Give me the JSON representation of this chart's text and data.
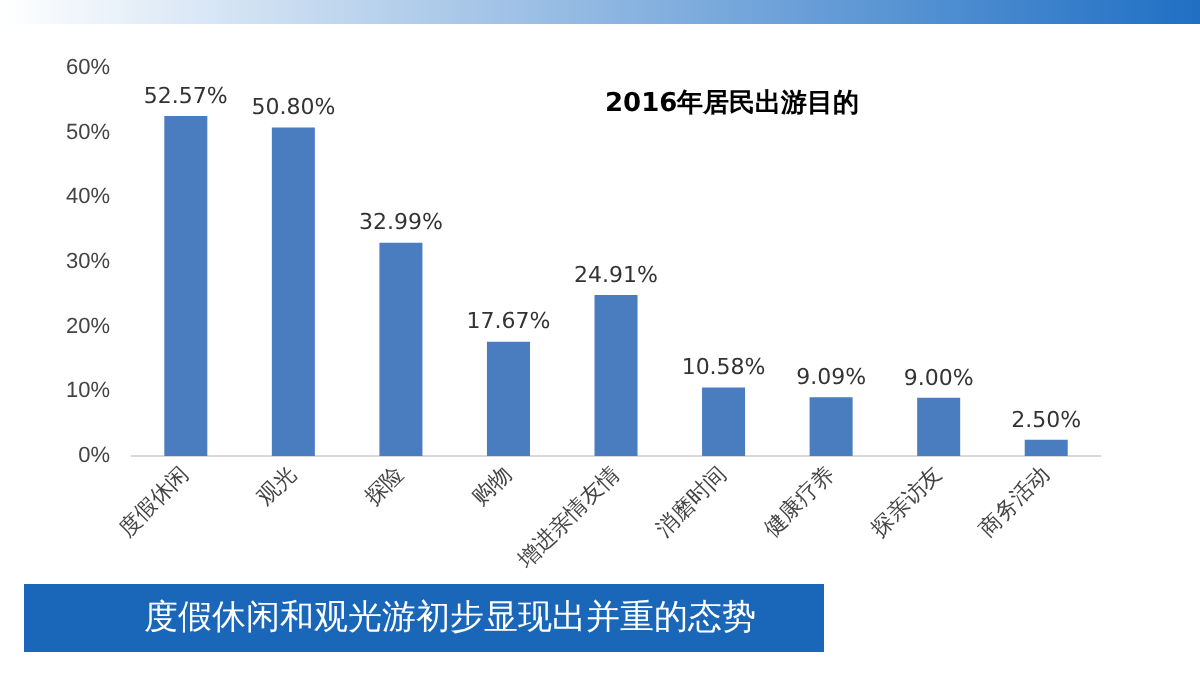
{
  "chart_data": {
    "type": "bar",
    "title": "2016年居民出游目的",
    "categories": [
      "度假休闲",
      "观光",
      "探险",
      "购物",
      "增进亲情友情",
      "消磨时间",
      "健康疗养",
      "探亲访友",
      "商务活动"
    ],
    "values": [
      52.57,
      50.8,
      32.99,
      17.67,
      24.91,
      10.58,
      9.09,
      9.0,
      2.5
    ],
    "value_labels": [
      "52.57%",
      "50.80%",
      "32.99%",
      "17.67%",
      "24.91%",
      "10.58%",
      "9.09%",
      "9.00%",
      "2.50%"
    ],
    "color": "#4a7cc0",
    "ylim": [
      0,
      60
    ],
    "yticks": [
      {
        "value": 0,
        "label": "0%"
      },
      {
        "value": 10,
        "label": "10%"
      },
      {
        "value": 20,
        "label": "20%"
      },
      {
        "value": 30,
        "label": "30%"
      },
      {
        "value": 40,
        "label": "40%"
      },
      {
        "value": 50,
        "label": "50%"
      },
      {
        "value": 60,
        "label": "60%"
      }
    ],
    "grid": false,
    "annotations": [
      "度假休闲和观光游初步显现出并重的态势"
    ]
  }
}
